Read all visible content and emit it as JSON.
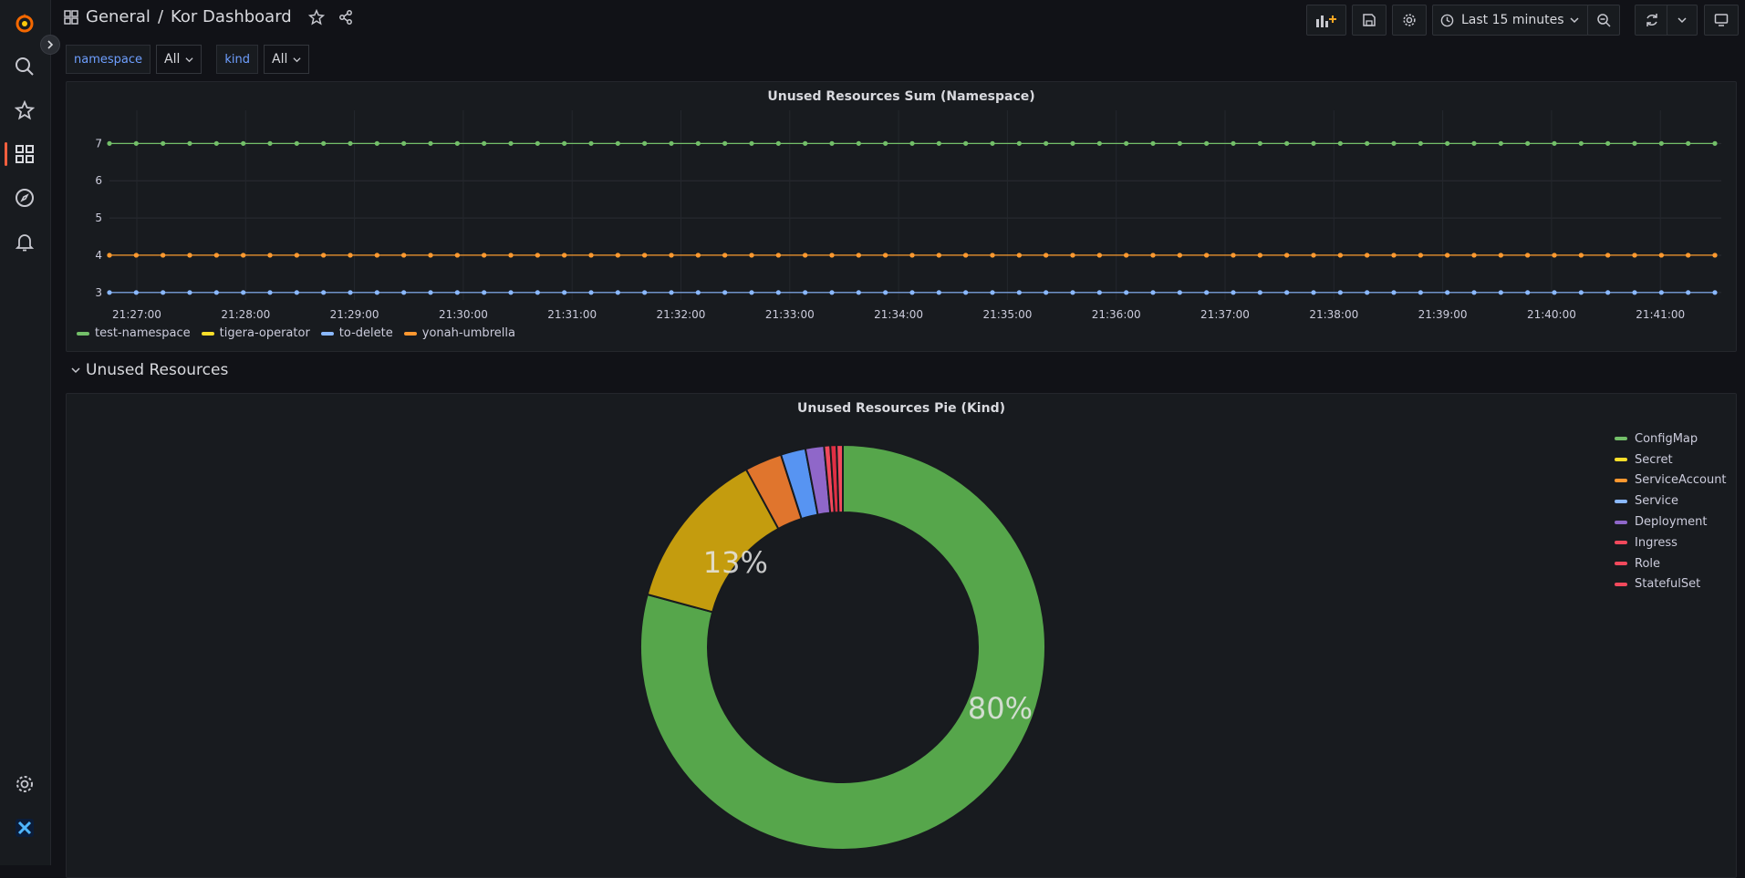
{
  "breadcrumb": {
    "folder": "General",
    "separator": "/",
    "dashboard": "Kor Dashboard"
  },
  "toolbar": {
    "time_range": "Last 15 minutes"
  },
  "variables": [
    {
      "label": "namespace",
      "value": "All"
    },
    {
      "label": "kind",
      "value": "All"
    }
  ],
  "panels": {
    "timeseries_title": "Unused Resources Sum (Namespace)",
    "row_title": "Unused Resources",
    "pie_title": "Unused Resources Pie (Kind)"
  },
  "colors": {
    "green": "#73bf69",
    "yellow": "#fade2a",
    "orange": "#ff9830",
    "blue": "#8ab8ff",
    "purple": "#8f67c9",
    "red": "#f2495c",
    "accent": "#f55f3e"
  },
  "chart_data": [
    {
      "type": "line",
      "title": "Unused Resources Sum (Namespace)",
      "x": [
        "21:27:00",
        "21:28:00",
        "21:29:00",
        "21:30:00",
        "21:31:00",
        "21:32:00",
        "21:33:00",
        "21:34:00",
        "21:35:00",
        "21:36:00",
        "21:37:00",
        "21:38:00",
        "21:39:00",
        "21:40:00",
        "21:41:00"
      ],
      "y_ticks": [
        3,
        4,
        5,
        6,
        7
      ],
      "ylim": [
        2.8,
        7.4
      ],
      "points_per_series": 61,
      "series": [
        {
          "name": "test-namespace",
          "color": "#73bf69",
          "value": 7
        },
        {
          "name": "tigera-operator",
          "color": "#fade2a",
          "value": 4
        },
        {
          "name": "to-delete",
          "color": "#8ab8ff",
          "value": 3
        },
        {
          "name": "yonah-umbrella",
          "color": "#ff9830",
          "value": 4
        }
      ]
    },
    {
      "type": "pie",
      "title": "Unused Resources Pie (Kind)",
      "labels": [
        "ConfigMap",
        "Secret",
        "ServiceAccount",
        "Service",
        "Deployment",
        "Ingress",
        "Role",
        "StatefulSet"
      ],
      "percents": [
        80,
        13,
        3,
        2,
        1.5,
        0.5,
        0.5,
        0.5
      ],
      "display_labels": [
        "80%",
        "13%",
        "",
        "",
        "",
        "",
        "",
        ""
      ],
      "colors": [
        "#56a64b",
        "#c49c0e",
        "#e0752d",
        "#5794f2",
        "#8f67c9",
        "#f2495c",
        "#e02f44",
        "#f2495c"
      ]
    }
  ]
}
